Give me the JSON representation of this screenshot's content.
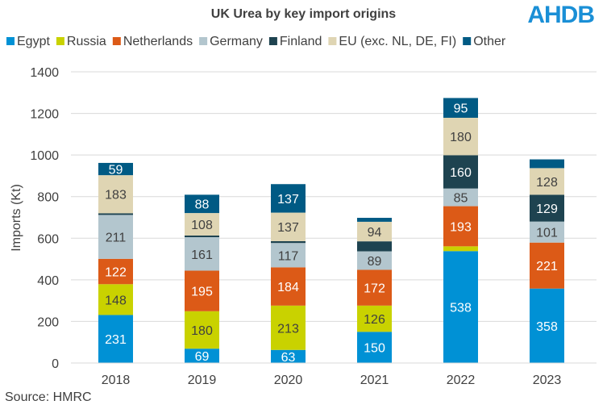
{
  "chart_data": {
    "type": "bar",
    "stacked": true,
    "title": "UK Urea by key import origins",
    "ylabel": "Imports (Kt)",
    "xlabel": "",
    "ylim": [
      0,
      1400
    ],
    "yticks": [
      0,
      200,
      400,
      600,
      800,
      1000,
      1200,
      1400
    ],
    "grid": true,
    "legend_position": "top",
    "categories": [
      "2018",
      "2019",
      "2020",
      "2021",
      "2022",
      "2023"
    ],
    "series": [
      {
        "name": "Egypt",
        "color": "#0091d5",
        "label_color": "#ffffff",
        "values": [
          231,
          69,
          63,
          150,
          538,
          358
        ],
        "labels": [
          "231",
          "69",
          "63",
          "150",
          "538",
          "358"
        ]
      },
      {
        "name": "Russia",
        "color": "#c9d200",
        "label_color": "#404040",
        "values": [
          148,
          180,
          213,
          126,
          23,
          0
        ],
        "labels": [
          "148",
          "180",
          "213",
          "126",
          "",
          ""
        ]
      },
      {
        "name": "Netherlands",
        "color": "#dc5a17",
        "label_color": "#ffffff",
        "values": [
          122,
          195,
          184,
          172,
          193,
          221
        ],
        "labels": [
          "122",
          "195",
          "184",
          "172",
          "193",
          "221"
        ]
      },
      {
        "name": "Germany",
        "color": "#b3c6ce",
        "label_color": "#404040",
        "values": [
          211,
          161,
          117,
          89,
          85,
          101
        ],
        "labels": [
          "211",
          "161",
          "117",
          "89",
          "85",
          "101"
        ]
      },
      {
        "name": "Finland",
        "color": "#1e4350",
        "label_color": "#ffffff",
        "values": [
          8,
          8,
          9,
          48,
          160,
          129
        ],
        "labels": [
          "",
          "",
          "",
          "",
          "160",
          "129"
        ]
      },
      {
        "name": "EU (exc. NL, DE, FI)",
        "color": "#dfd5b3",
        "label_color": "#404040",
        "values": [
          183,
          108,
          137,
          94,
          180,
          128
        ],
        "labels": [
          "183",
          "108",
          "137",
          "94",
          "180",
          "128"
        ]
      },
      {
        "name": "Other",
        "color": "#005a84",
        "label_color": "#ffffff",
        "values": [
          59,
          88,
          137,
          19,
          95,
          42
        ],
        "labels": [
          "59",
          "88",
          "137",
          "",
          "95",
          ""
        ]
      }
    ]
  },
  "source": "Source: HMRC",
  "logo": "AHDB"
}
